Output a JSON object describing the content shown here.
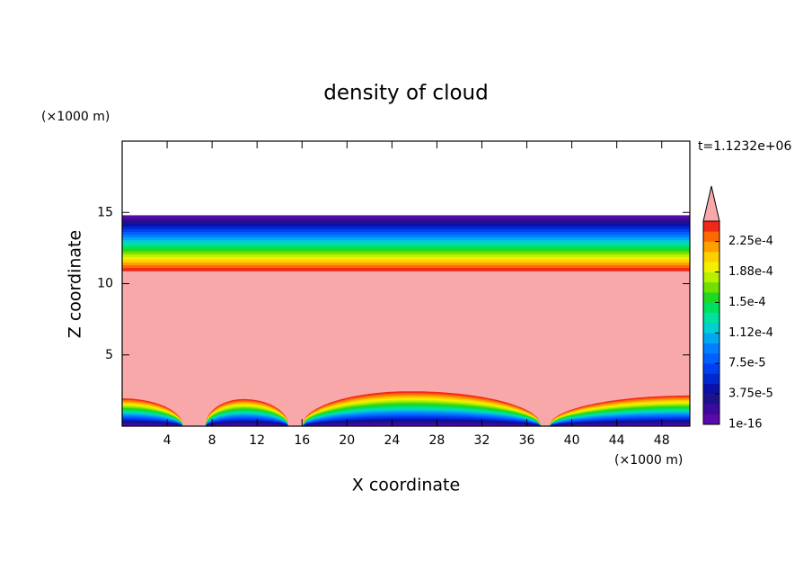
{
  "chart_data": {
    "type": "contour",
    "title": "density of cloud",
    "xlabel": "X coordinate",
    "ylabel": "Z coordinate",
    "x_unit": "(×1000 m)",
    "y_unit": "(×1000 m)",
    "time_label": "t=1.1232e+06",
    "xlim": [
      0,
      50.5
    ],
    "ylim": [
      0,
      20
    ],
    "xticks": [
      4,
      8,
      12,
      16,
      20,
      24,
      28,
      32,
      36,
      40,
      44,
      48
    ],
    "yticks": [
      5,
      10,
      15
    ],
    "clim": [
      0,
      0.00025
    ],
    "colorbar_ticks": [
      1e-16,
      {
        "value": 3.75e-05,
        "label": "3.75e-5"
      },
      {
        "value": 7.5e-05,
        "label": "7.5e-5"
      },
      {
        "value": 0.0001125,
        "label": "1.12e-4"
      },
      {
        "value": 0.00015,
        "label": "1.5e-4"
      },
      {
        "value": 0.0001875,
        "label": "1.88e-4"
      },
      {
        "value": 0.000225,
        "label": "2.25e-4"
      }
    ],
    "colors": [
      "#5a0aa8",
      "#3c0a9c",
      "#1c128c",
      "#0a10a8",
      "#0028d0",
      "#0040f0",
      "#0060ff",
      "#0080ff",
      "#00a8f0",
      "#00d0d0",
      "#00e0a0",
      "#00e060",
      "#20d820",
      "#70e000",
      "#b8f000",
      "#f0f000",
      "#ffd000",
      "#ffa000",
      "#ff6a00",
      "#f02818"
    ],
    "over_color": "#f8a8a8",
    "upper_layer": {
      "top": 14.8,
      "bottom": 10.9
    },
    "ground_layers": [
      {
        "x": [
          0,
          5.4
        ],
        "peak_x": 0,
        "peak_z": 1.95
      },
      {
        "x": [
          7.4,
          14.8
        ],
        "peak_x": 10.8,
        "peak_z": 1.9
      },
      {
        "x": [
          16.0,
          37.3
        ],
        "peak_x": 25.6,
        "peak_z": 2.45
      },
      {
        "x": [
          38.0,
          50.5
        ],
        "peak_x": 50.5,
        "peak_z": 2.15
      }
    ]
  }
}
